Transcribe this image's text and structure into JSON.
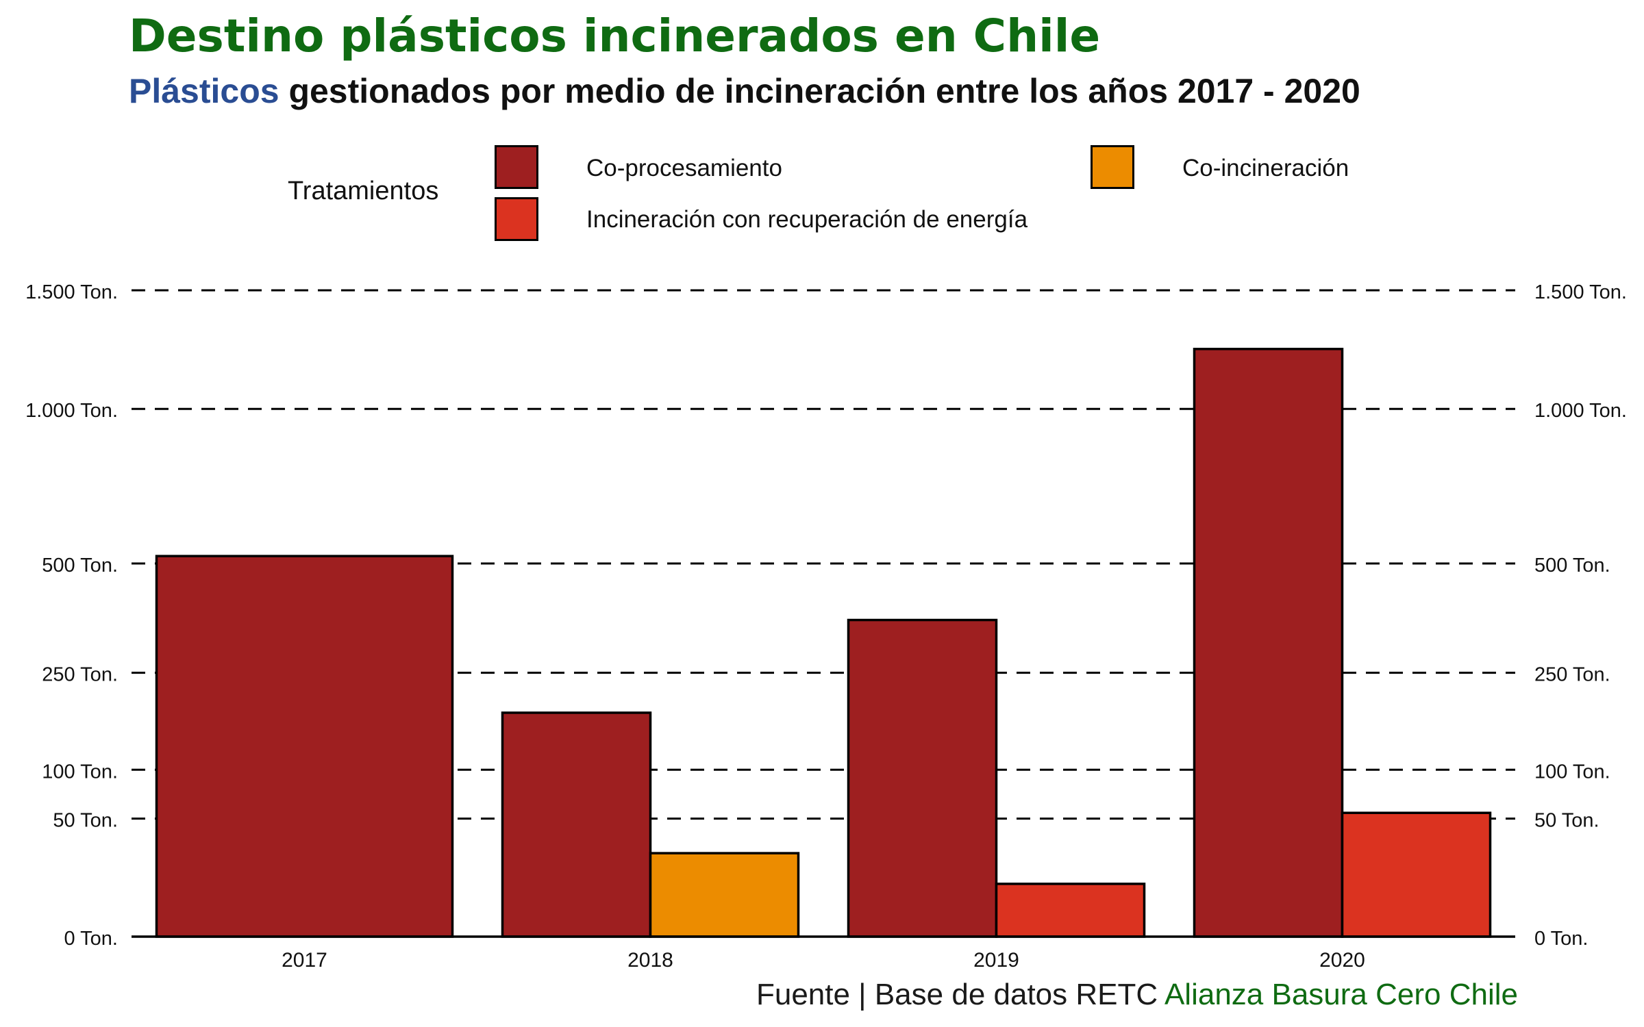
{
  "title": "Destino plásticos incinerados en Chile",
  "subtitle": {
    "highlight": "Plásticos",
    "rest": " gestionados por medio de incineración entre los años 2017 - 2020"
  },
  "legend": {
    "title": "Tratamientos",
    "items": [
      {
        "label": "Co-procesamiento",
        "color": "#9e1f20"
      },
      {
        "label": "Co-incineración",
        "color": "#ec8c00"
      },
      {
        "label": "Incineración con recuperación de energía",
        "color": "#db3320"
      }
    ]
  },
  "source": {
    "prefix": "Fuente | Base de datos RETC ",
    "org": "Alianza Basura Cero Chile"
  },
  "colors": {
    "title": "#0f6b12",
    "subtitle_highlight": "#2a4d93",
    "co_procesamiento": "#9e1f20",
    "co_incineracion": "#ec8c00",
    "incineracion_energia": "#db3320"
  },
  "chart_data": {
    "type": "bar",
    "categories": [
      "2017",
      "2018",
      "2019",
      "2020"
    ],
    "series": [
      {
        "name": "Co-procesamiento",
        "values": [
          520,
          180,
          360,
          1240
        ]
      },
      {
        "name": "Co-incineración",
        "values": [
          null,
          25,
          null,
          null
        ]
      },
      {
        "name": "Incineración con recuperación de energía",
        "values": [
          null,
          null,
          10,
          55
        ]
      }
    ],
    "y_scale": "sqrt",
    "ylim": [
      0,
      1500
    ],
    "yticks": [
      0,
      50,
      100,
      250,
      500,
      1000,
      1500
    ],
    "ytick_labels": [
      "0 Ton.",
      "50 Ton.",
      "100 Ton.",
      "250 Ton.",
      "500 Ton.",
      "1.000 Ton.",
      "1.500 Ton."
    ],
    "grid": "dashed horizontal",
    "legend_position": "top",
    "xlabel": "",
    "ylabel": ""
  }
}
